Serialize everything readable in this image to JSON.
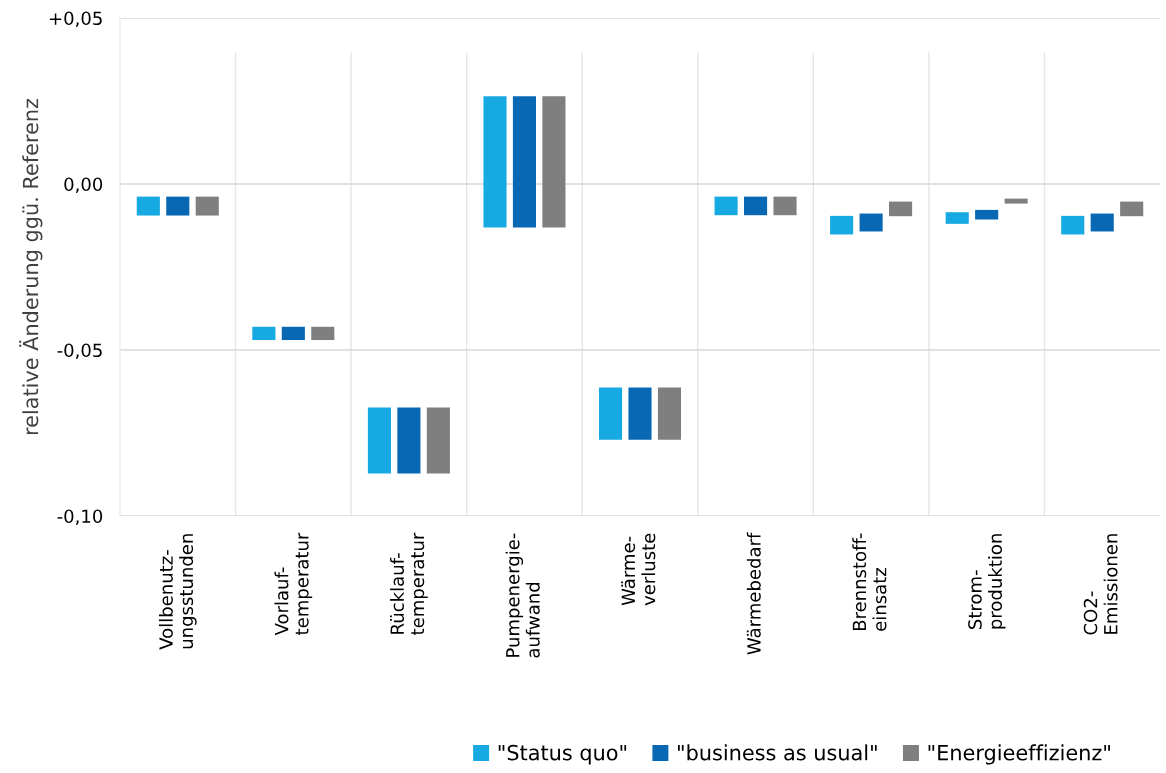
{
  "chart_data": {
    "type": "bar",
    "ylabel": "relative Änderung ggü. Referenz",
    "categories": [
      "Vollbenutz-\nungsstunden",
      "Vorlauf-\ntemperatur",
      "Rücklauf-\ntemperatur",
      "Pumpenergie-\naufwand",
      "Wärme-\nverluste",
      "Wärmebedarf",
      "Brennstoff-\neinsatz",
      "Strom-\nproduktion",
      "CO2-\nEmissionen"
    ],
    "series": [
      {
        "name": "\"Status quo\"",
        "color": "#17a9e1",
        "base": [
          -0.0095,
          -0.047,
          -0.0872,
          -0.0131,
          -0.077,
          -0.0094,
          -0.0152,
          -0.012,
          -0.0152
        ],
        "values": [
          0.0057,
          0.004,
          0.0199,
          0.0395,
          0.0157,
          0.0056,
          0.0056,
          0.0035,
          0.0056
        ]
      },
      {
        "name": "\"business as usual\"",
        "color": "#0868b3",
        "base": [
          -0.0095,
          -0.047,
          -0.0872,
          -0.0131,
          -0.077,
          -0.0094,
          -0.0143,
          -0.0107,
          -0.0143
        ],
        "values": [
          0.0057,
          0.004,
          0.0199,
          0.0395,
          0.0157,
          0.0056,
          0.0054,
          0.0029,
          0.0054
        ]
      },
      {
        "name": "\"Energieeffizienz\"",
        "color": "#7f7f7f",
        "base": [
          -0.0095,
          -0.047,
          -0.0872,
          -0.0131,
          -0.077,
          -0.0094,
          -0.0097,
          -0.0059,
          -0.0097
        ],
        "values": [
          0.0057,
          0.004,
          0.0199,
          0.0395,
          0.0157,
          0.0056,
          0.0044,
          0.0015,
          0.0044
        ]
      }
    ],
    "ylim": [
      -0.1,
      0.05
    ],
    "yticks": [
      {
        "value": 0.05,
        "label": "+0,05"
      },
      {
        "value": 0.0,
        "label": "0,00"
      },
      {
        "value": -0.05,
        "label": "-0,05"
      },
      {
        "value": -0.1,
        "label": "-0,10"
      }
    ],
    "grid": true,
    "legend": "bottom"
  }
}
